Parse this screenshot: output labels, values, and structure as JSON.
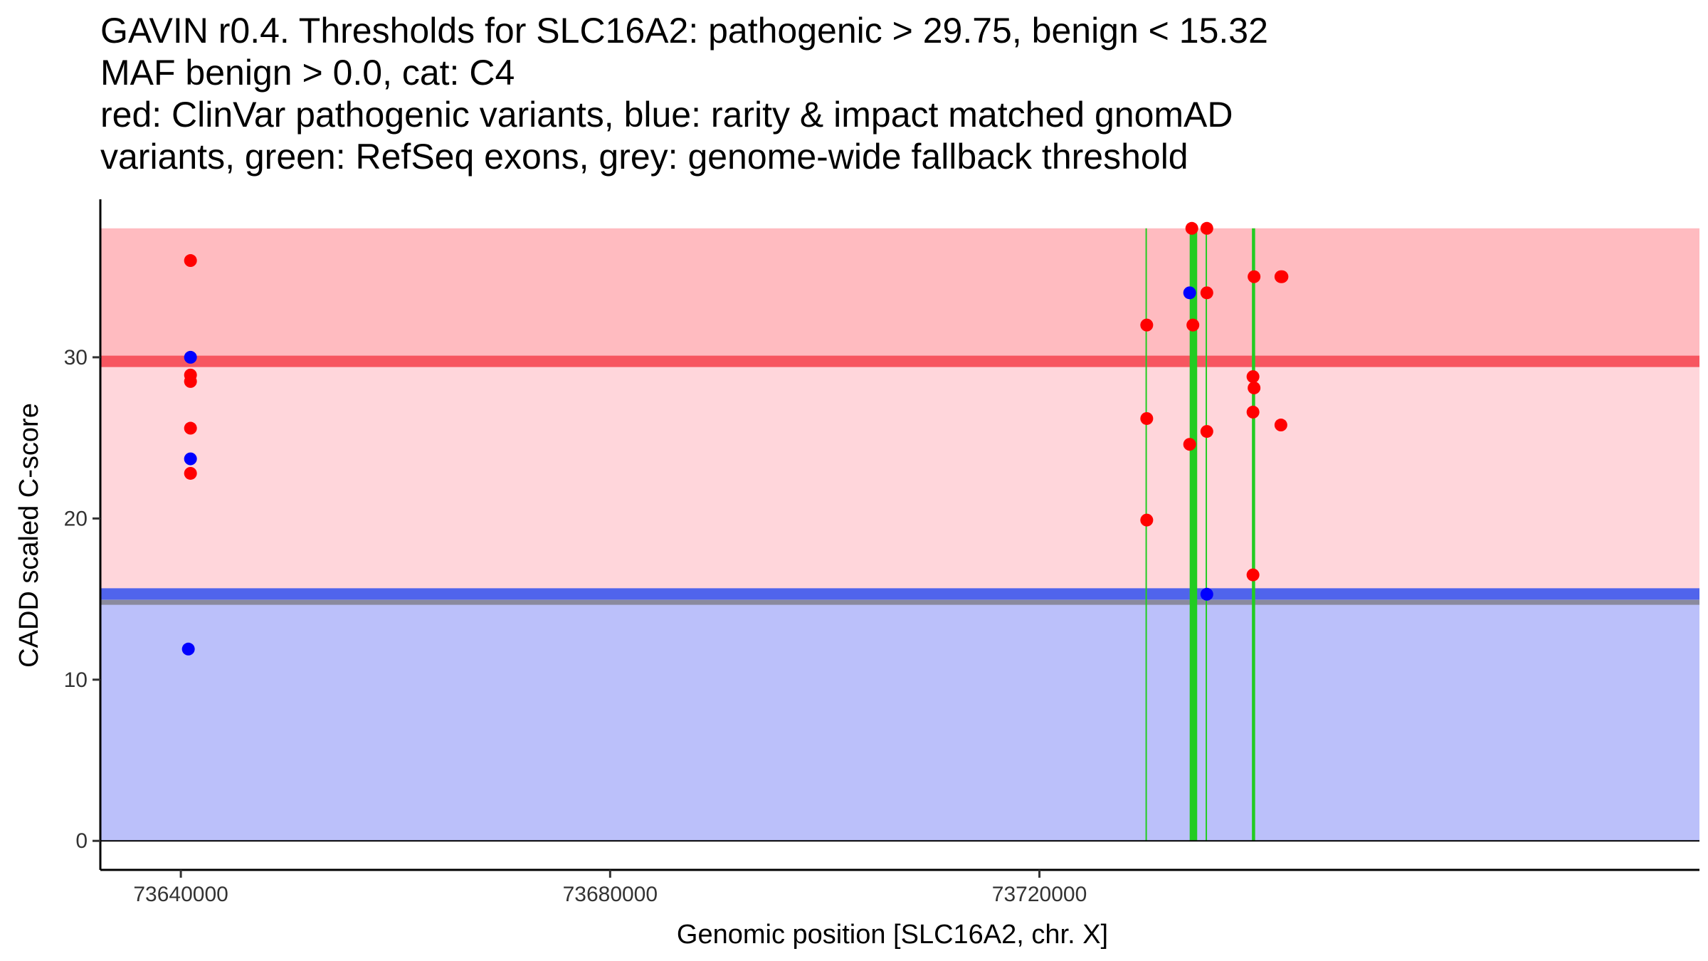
{
  "title_lines": [
    "GAVIN r0.4. Thresholds for SLC16A2: pathogenic > 29.75, benign < 15.32",
    "MAF benign > 0.0, cat: C4",
    "red: ClinVar pathogenic variants, blue: rarity & impact matched gnomAD",
    "variants, green: RefSeq exons, grey: genome-wide fallback threshold"
  ],
  "colors": {
    "pathogenic_band": "#ffbbc0",
    "mid_band": "#ffd6db",
    "benign_band": "#bbc0fa",
    "pathogenic_line": "#f75660",
    "benign_line": "#5064ec",
    "fallback_line": "#8a8a9e",
    "exon": "#22cc22",
    "clinvar_point": "#ff0000",
    "gnomad_point": "#0000ff"
  },
  "chart_data": {
    "type": "scatter",
    "xlabel": "Genomic position [SLC16A2, chr. X]",
    "ylabel": "CADD scaled C-score",
    "xlim": [
      73632500,
      73781500
    ],
    "ylim": [
      -1.8,
      39.8
    ],
    "x_ticks": [
      73640000,
      73680000,
      73720000
    ],
    "x_tick_labels": [
      "73640000",
      "73680000",
      "73720000"
    ],
    "y_ticks": [
      0,
      10,
      20,
      30
    ],
    "y_tick_labels": [
      "0",
      "10",
      "20",
      "30"
    ],
    "thresholds": {
      "pathogenic": 29.75,
      "benign": 15.32,
      "genome_wide_fallback": 14.8,
      "band_top": 38.0,
      "band_bottom": 0
    },
    "exons": [
      {
        "start": 73729900,
        "end": 73730000
      },
      {
        "start": 73734000,
        "end": 73734700
      },
      {
        "start": 73735500,
        "end": 73735600
      },
      {
        "start": 73739800,
        "end": 73740100
      }
    ],
    "series": [
      {
        "name": "ClinVar pathogenic variants",
        "color_key": "clinvar_point",
        "points": [
          [
            73640900,
            36.0
          ],
          [
            73640900,
            28.9
          ],
          [
            73640900,
            28.5
          ],
          [
            73640900,
            25.6
          ],
          [
            73640900,
            22.8
          ],
          [
            73730000,
            32.0
          ],
          [
            73730000,
            26.2
          ],
          [
            73730000,
            19.9
          ],
          [
            73734200,
            38.0
          ],
          [
            73734300,
            32.0
          ],
          [
            73734000,
            24.6
          ],
          [
            73735600,
            38.0
          ],
          [
            73735600,
            34.0
          ],
          [
            73735600,
            25.4
          ],
          [
            73740000,
            35.0
          ],
          [
            73739900,
            28.8
          ],
          [
            73740000,
            28.1
          ],
          [
            73739900,
            26.6
          ],
          [
            73739900,
            16.5
          ],
          [
            73742500,
            35.0
          ],
          [
            73742600,
            35.0
          ],
          [
            73742500,
            25.8
          ]
        ]
      },
      {
        "name": "rarity & impact matched gnomAD variants",
        "color_key": "gnomad_point",
        "points": [
          [
            73640900,
            30.0
          ],
          [
            73640900,
            23.7
          ],
          [
            73640700,
            11.9
          ],
          [
            73734000,
            34.0
          ],
          [
            73735600,
            15.3
          ]
        ]
      }
    ]
  }
}
